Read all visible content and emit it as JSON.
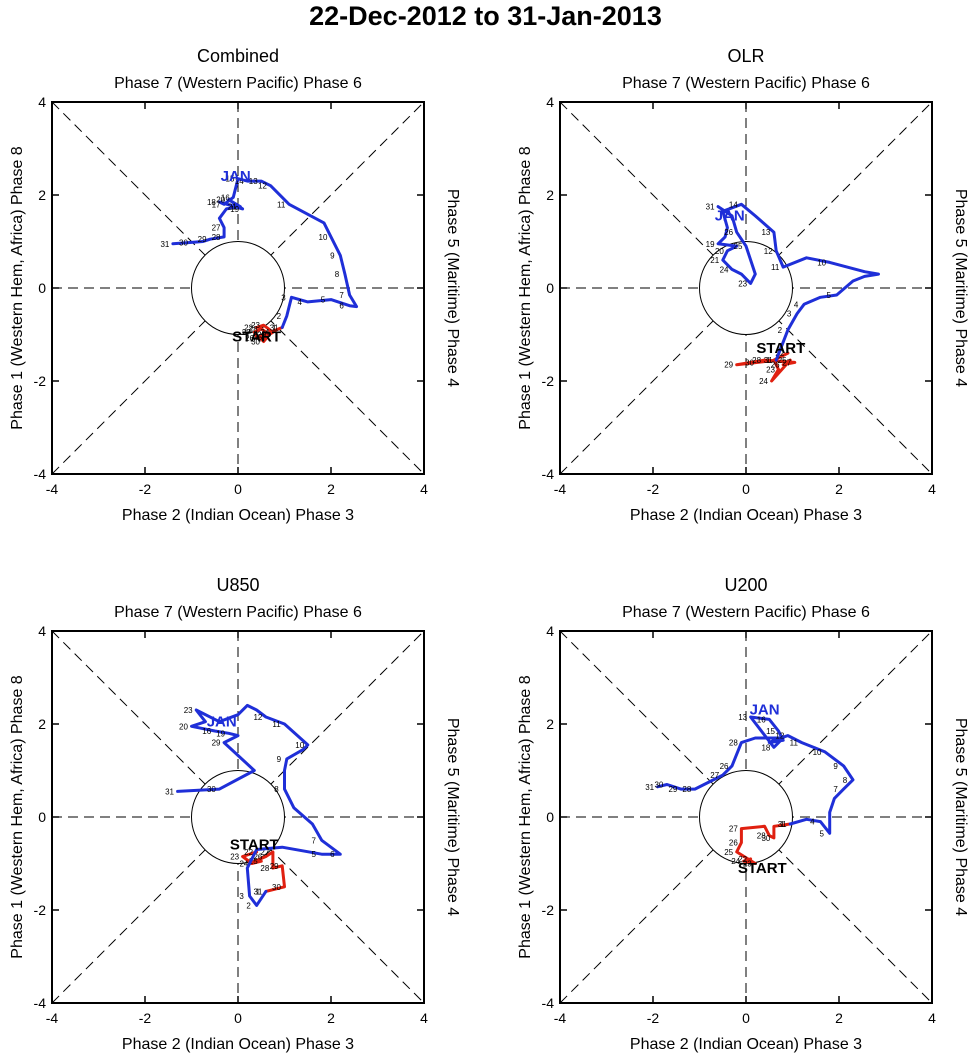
{
  "main_title": "22-Dec-2012 to 31-Jan-2013",
  "colors": {
    "december": "#e02010",
    "january": "#1f2fd8",
    "axis": "#000000"
  },
  "chart_data": [
    {
      "type": "line",
      "panel": "combined",
      "title": "Combined",
      "top_label": "Phase 7 (Western Pacific) Phase 6",
      "bottom_label": "Phase 2 (Indian Ocean) Phase 3",
      "left_label": "Phase 1 (Western Hem, Africa) Phase 8",
      "right_label": "Phase 5 (Maritime) Phase 4",
      "xlim": [
        -4,
        4
      ],
      "ylim": [
        -4,
        4
      ],
      "xticks": [
        "-4",
        "-2",
        "0",
        "2",
        "4"
      ],
      "yticks": [
        "-4",
        "-2",
        "0",
        "2",
        "4"
      ],
      "start_label": "START",
      "start_pos": [
        0.4,
        -1.15
      ],
      "month_label": "JAN",
      "month_pos": [
        -0.05,
        2.3
      ],
      "series": [
        {
          "name": "December",
          "color": "#e02010",
          "points": [
            [
              0.4,
              -0.85
            ],
            [
              0.55,
              -0.8
            ],
            [
              0.75,
              -0.95
            ],
            [
              0.6,
              -1.05
            ],
            [
              0.42,
              -1.08
            ],
            [
              0.35,
              -0.95
            ],
            [
              0.5,
              -0.88
            ],
            [
              0.68,
              -1.0
            ],
            [
              0.55,
              -1.15
            ],
            [
              0.45,
              -1.05
            ],
            [
              0.95,
              -0.85
            ]
          ],
          "labels": [
            "22",
            "23",
            "24",
            "25",
            "26",
            "27",
            "28",
            "29",
            "30",
            "",
            "31"
          ]
        },
        {
          "name": "January",
          "color": "#1f2fd8",
          "points": [
            [
              0.95,
              -0.85
            ],
            [
              1.05,
              -0.6
            ],
            [
              1.15,
              -0.2
            ],
            [
              1.5,
              -0.3
            ],
            [
              2.0,
              -0.25
            ],
            [
              2.4,
              -0.38
            ],
            [
              2.55,
              -0.4
            ],
            [
              2.4,
              -0.15
            ],
            [
              2.3,
              0.3
            ],
            [
              2.2,
              0.7
            ],
            [
              2.0,
              1.1
            ],
            [
              1.85,
              1.4
            ],
            [
              1.1,
              1.8
            ],
            [
              0.7,
              2.2
            ],
            [
              0.5,
              2.3
            ],
            [
              0.2,
              2.3
            ],
            [
              0.0,
              2.35
            ],
            [
              -0.1,
              1.95
            ],
            [
              -0.3,
              1.8
            ],
            [
              -0.4,
              1.85
            ],
            [
              0.1,
              1.7
            ],
            [
              -0.2,
              1.9
            ],
            [
              0.05,
              1.75
            ],
            [
              -0.25,
              1.7
            ],
            [
              -0.4,
              1.5
            ],
            [
              -0.3,
              1.3
            ],
            [
              -0.3,
              1.1
            ],
            [
              -0.6,
              1.05
            ],
            [
              -0.75,
              1.0
            ],
            [
              -1.0,
              0.98
            ],
            [
              -1.4,
              0.95
            ]
          ],
          "labels": [
            "1",
            "2",
            "3",
            "4",
            "5",
            "6",
            "",
            "7",
            "8",
            "9",
            "10",
            "",
            "11",
            "12",
            "13",
            "14",
            "15",
            "16",
            "17",
            "18",
            "19",
            "20",
            "21",
            "",
            "",
            "27",
            "28",
            "29",
            "",
            "30",
            "31"
          ]
        }
      ]
    },
    {
      "type": "line",
      "panel": "olr",
      "title": "OLR",
      "top_label": "Phase 7 (Western Pacific) Phase 6",
      "bottom_label": "Phase 2 (Indian Ocean) Phase 3",
      "left_label": "Phase 1 (Western Hem, Africa) Phase 8",
      "right_label": "Phase 5 (Maritime) Phase 4",
      "xlim": [
        -4,
        4
      ],
      "ylim": [
        -4,
        4
      ],
      "xticks": [
        "-4",
        "-2",
        "0",
        "2",
        "4"
      ],
      "yticks": [
        "-4",
        "-2",
        "0",
        "2",
        "4"
      ],
      "start_label": "START",
      "start_pos": [
        0.75,
        -1.4
      ],
      "month_label": "JAN",
      "month_pos": [
        -0.35,
        1.45
      ],
      "series": [
        {
          "name": "December",
          "color": "#e02010",
          "points": [
            [
              0.9,
              -1.4
            ],
            [
              0.6,
              -1.55
            ],
            [
              0.7,
              -1.75
            ],
            [
              0.55,
              -2.0
            ],
            [
              0.95,
              -1.55
            ],
            [
              0.8,
              -1.65
            ],
            [
              1.05,
              -1.6
            ],
            [
              0.4,
              -1.55
            ],
            [
              -0.2,
              -1.65
            ],
            [
              0.25,
              -1.6
            ],
            [
              0.65,
              -1.55
            ]
          ],
          "labels": [
            "22",
            "",
            "23",
            "24",
            "25",
            "26",
            "27",
            "28",
            "29",
            "30",
            "31"
          ]
        },
        {
          "name": "January",
          "color": "#1f2fd8",
          "points": [
            [
              0.65,
              -1.55
            ],
            [
              0.9,
              -0.9
            ],
            [
              1.1,
              -0.55
            ],
            [
              1.25,
              -0.35
            ],
            [
              1.6,
              -0.2
            ],
            [
              1.95,
              -0.15
            ],
            [
              2.3,
              0.15
            ],
            [
              2.55,
              0.25
            ],
            [
              2.85,
              0.3
            ],
            [
              2.55,
              0.35
            ],
            [
              1.8,
              0.55
            ],
            [
              1.3,
              0.65
            ],
            [
              0.8,
              0.45
            ],
            [
              0.65,
              0.8
            ],
            [
              0.6,
              1.2
            ],
            [
              0.2,
              1.55
            ],
            [
              -0.1,
              1.8
            ],
            [
              -0.5,
              1.65
            ],
            [
              -0.4,
              1.3
            ],
            [
              -0.45,
              1.1
            ],
            [
              -0.6,
              0.95
            ],
            [
              -0.2,
              0.9
            ],
            [
              -0.4,
              0.8
            ],
            [
              -0.5,
              0.6
            ],
            [
              -0.3,
              0.4
            ],
            [
              -0.1,
              0.3
            ],
            [
              0.1,
              0.1
            ],
            [
              0.2,
              0.3
            ],
            [
              0.0,
              0.9
            ],
            [
              -0.2,
              1.2
            ],
            [
              -0.3,
              1.55
            ],
            [
              -0.6,
              1.75
            ]
          ],
          "labels": [
            "1",
            "2",
            "3",
            "4",
            "",
            "5",
            "",
            "",
            "",
            "",
            "10",
            "",
            "11",
            "12",
            "13",
            "",
            "14",
            "",
            "",
            "",
            "19",
            "",
            "20",
            "21",
            "24",
            "",
            "23",
            "",
            "25",
            "26",
            "",
            "31"
          ]
        }
      ]
    },
    {
      "type": "line",
      "panel": "u850",
      "title": "U850",
      "top_label": "Phase 7 (Western Pacific) Phase 6",
      "bottom_label": "Phase 2 (Indian Ocean) Phase 3",
      "left_label": "Phase 1 (Western Hem, Africa) Phase 8",
      "right_label": "Phase 5 (Maritime) Phase 4",
      "xlim": [
        -4,
        4
      ],
      "ylim": [
        -4,
        4
      ],
      "xticks": [
        "-4",
        "-2",
        "0",
        "2",
        "4"
      ],
      "yticks": [
        "-4",
        "-2",
        "0",
        "2",
        "4"
      ],
      "start_label": "START",
      "start_pos": [
        0.35,
        -0.7
      ],
      "month_label": "JAN",
      "month_pos": [
        -0.35,
        1.95
      ],
      "series": [
        {
          "name": "December",
          "color": "#e02010",
          "points": [
            [
              0.4,
              -0.75
            ],
            [
              0.1,
              -0.85
            ],
            [
              0.3,
              -1.0
            ],
            [
              0.5,
              -0.95
            ],
            [
              0.25,
              -1.0
            ],
            [
              0.6,
              -0.85
            ],
            [
              0.75,
              -0.75
            ],
            [
              0.75,
              -1.1
            ],
            [
              0.95,
              -1.05
            ],
            [
              1.0,
              -1.5
            ],
            [
              0.6,
              -1.6
            ]
          ],
          "labels": [
            "22",
            "23",
            "24",
            "25",
            "",
            "26",
            "27",
            "28",
            "29",
            "30",
            "31"
          ]
        },
        {
          "name": "January",
          "color": "#1f2fd8",
          "points": [
            [
              0.6,
              -1.6
            ],
            [
              0.4,
              -1.9
            ],
            [
              0.25,
              -1.7
            ],
            [
              0.2,
              -1.1
            ],
            [
              0.4,
              -0.7
            ],
            [
              0.95,
              -0.65
            ],
            [
              1.8,
              -0.8
            ],
            [
              2.2,
              -0.8
            ],
            [
              1.8,
              -0.5
            ],
            [
              1.6,
              -0.15
            ],
            [
              1.2,
              0.2
            ],
            [
              1.0,
              0.6
            ],
            [
              1.0,
              1.0
            ],
            [
              1.05,
              1.25
            ],
            [
              1.4,
              1.45
            ],
            [
              1.5,
              1.55
            ],
            [
              1.0,
              2.0
            ],
            [
              0.6,
              2.15
            ],
            [
              0.4,
              2.3
            ],
            [
              0.2,
              2.4
            ],
            [
              0.0,
              2.2
            ],
            [
              -0.4,
              2.05
            ],
            [
              -0.9,
              2.3
            ],
            [
              -0.7,
              2.05
            ],
            [
              -1.0,
              1.95
            ],
            [
              -0.5,
              1.85
            ],
            [
              -0.2,
              1.8
            ],
            [
              0.0,
              1.75
            ],
            [
              -0.3,
              1.6
            ],
            [
              0.35,
              1.0
            ],
            [
              -0.4,
              0.6
            ],
            [
              -1.3,
              0.55
            ]
          ],
          "labels": [
            "1",
            "2",
            "3",
            "",
            "",
            "",
            "5",
            "6",
            "7",
            "",
            "",
            "8",
            "",
            "9",
            "",
            "10",
            "11",
            "12",
            "",
            "",
            "",
            "",
            "23",
            "",
            "20",
            "16",
            "19",
            "",
            "29",
            "",
            "30",
            "31"
          ]
        }
      ]
    },
    {
      "type": "line",
      "panel": "u200",
      "title": "U200",
      "top_label": "Phase 7 (Western Pacific) Phase 6",
      "bottom_label": "Phase 2 (Indian Ocean) Phase 3",
      "left_label": "Phase 1 (Western Hem, Africa) Phase 8",
      "right_label": "Phase 5 (Maritime) Phase 4",
      "xlim": [
        -4,
        4
      ],
      "ylim": [
        -4,
        4
      ],
      "xticks": [
        "-4",
        "-2",
        "0",
        "2",
        "4"
      ],
      "yticks": [
        "-4",
        "-2",
        "0",
        "2",
        "4"
      ],
      "start_label": "START",
      "start_pos": [
        0.35,
        -1.2
      ],
      "month_label": "JAN",
      "month_pos": [
        0.4,
        2.2
      ],
      "series": [
        {
          "name": "December",
          "color": "#e02010",
          "points": [
            [
              0.1,
              -0.9
            ],
            [
              -0.05,
              -0.95
            ],
            [
              0.2,
              -1.0
            ],
            [
              -0.2,
              -0.75
            ],
            [
              -0.1,
              -0.55
            ],
            [
              -0.1,
              -0.25
            ],
            [
              0.4,
              -0.2
            ],
            [
              0.5,
              -0.4
            ],
            [
              0.6,
              -0.45
            ],
            [
              0.6,
              -0.2
            ],
            [
              0.95,
              -0.15
            ]
          ],
          "labels": [
            "22",
            "24",
            "23",
            "25",
            "26",
            "27",
            "",
            "28",
            "30",
            "",
            "31"
          ]
        },
        {
          "name": "January",
          "color": "#1f2fd8",
          "points": [
            [
              0.95,
              -0.15
            ],
            [
              1.3,
              -0.05
            ],
            [
              1.6,
              -0.1
            ],
            [
              1.8,
              -0.35
            ],
            [
              1.8,
              0.1
            ],
            [
              1.9,
              0.4
            ],
            [
              2.1,
              0.6
            ],
            [
              2.3,
              0.8
            ],
            [
              2.1,
              1.1
            ],
            [
              1.7,
              1.4
            ],
            [
              1.2,
              1.6
            ],
            [
              0.9,
              1.75
            ],
            [
              0.6,
              1.65
            ],
            [
              0.5,
              1.6
            ],
            [
              0.8,
              1.65
            ],
            [
              0.7,
              1.85
            ],
            [
              0.5,
              2.1
            ],
            [
              0.1,
              2.15
            ],
            [
              0.6,
              1.5
            ],
            [
              0.8,
              1.7
            ],
            [
              0.6,
              1.7
            ],
            [
              0.2,
              1.7
            ],
            [
              -0.1,
              1.6
            ],
            [
              -0.3,
              1.1
            ],
            [
              -0.5,
              0.9
            ],
            [
              -0.9,
              0.7
            ],
            [
              -1.1,
              0.6
            ],
            [
              -1.4,
              0.6
            ],
            [
              -1.7,
              0.7
            ],
            [
              -1.9,
              0.65
            ]
          ],
          "labels": [
            "1",
            "",
            "4",
            "5",
            "",
            "",
            "7",
            "8",
            "9",
            "10",
            "11",
            "12",
            "",
            "",
            "",
            "15",
            "16",
            "13",
            "18",
            "",
            "",
            "",
            "28",
            "26",
            "27",
            "",
            "28",
            "29",
            "30",
            "31"
          ]
        }
      ]
    }
  ]
}
